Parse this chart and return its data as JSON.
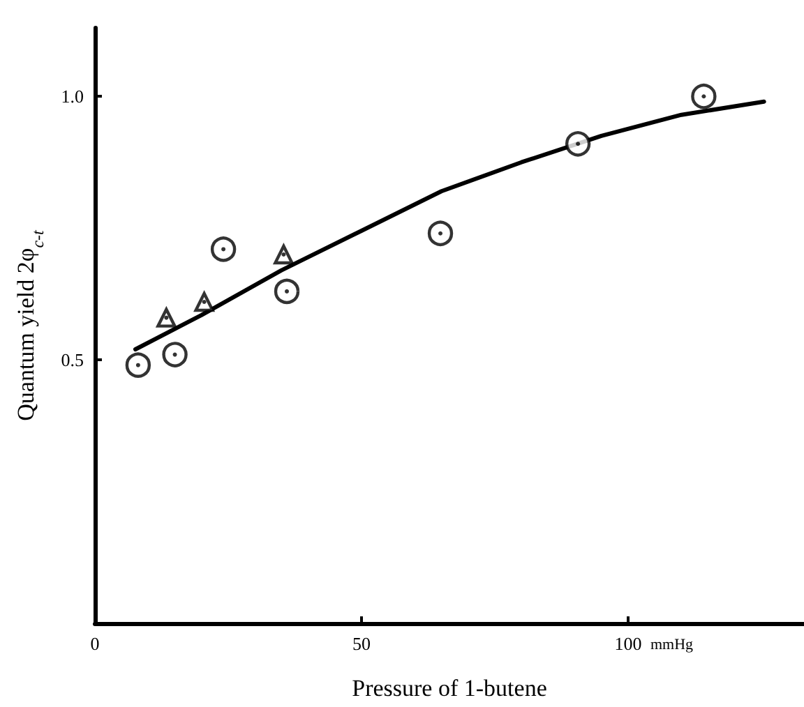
{
  "chart_data": {
    "type": "scatter",
    "xlabel": "Pressure of 1-butene",
    "ylabel": "Quantum yield 2φ$_{c-t}$",
    "xlim": [
      0,
      133
    ],
    "ylim": [
      0,
      1.13
    ],
    "xticks": [
      0,
      50,
      100
    ],
    "yticks": [
      0.5,
      {
        "value": 1.0,
        "label": "1.0"
      }
    ],
    "grid": false,
    "annotations": [
      "mmHg"
    ],
    "series": [
      {
        "marker": "circle",
        "color": "#000000",
        "x": [
          8.1,
          15.0,
          24.1,
          36.0,
          64.8,
          90.6,
          114.2
        ],
        "values": [
          0.49,
          0.51,
          0.71,
          0.63,
          0.74,
          0.91,
          1.0
        ]
      },
      {
        "marker": "triangle",
        "color": "#000000",
        "x": [
          13.4,
          20.5,
          35.4
        ],
        "values": [
          0.58,
          0.61,
          0.7
        ]
      },
      {
        "type": "line",
        "marker": "none",
        "line_style": "solid",
        "color": "#000000",
        "x": [
          7.6,
          20,
          35,
          50,
          65,
          80,
          95,
          110,
          125.5
        ],
        "values": [
          0.52,
          0.585,
          0.67,
          0.745,
          0.82,
          0.875,
          0.925,
          0.965,
          0.99
        ]
      }
    ]
  }
}
